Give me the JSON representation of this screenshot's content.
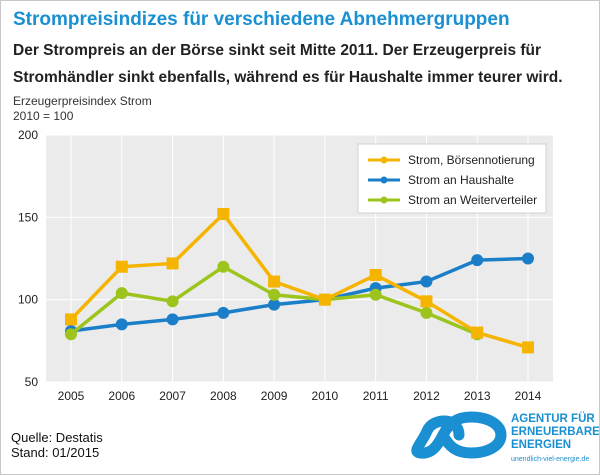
{
  "title": "Strompreisindizes für verschiedene Abnehmergruppen",
  "subtitle_lines": [
    "Der Strompreis an der Börse sinkt seit Mitte 2011. Der Erzeugerpreis für",
    "Stromhändler sinkt ebenfalls, während es für Haushalte immer teurer wird."
  ],
  "axis_title_lines": [
    "Erzeugerpreisindex Strom",
    "2010 = 100"
  ],
  "source_lines": [
    "Quelle: Destatis",
    "Stand: 01/2015"
  ],
  "logo": {
    "lines": [
      "AGENTUR FÜR",
      "ERNEUERBARE",
      "ENERGIEN"
    ],
    "url": "unendlich-viel-energie.de"
  },
  "colors": {
    "accent": "#1a8fd1",
    "boerse": "#f5b400",
    "haushalte": "#1a7fc8",
    "weiterverteiler": "#9cc41c",
    "plot_bg": "#ebebeb"
  },
  "chart_data": {
    "type": "line",
    "x": [
      "2005",
      "2006",
      "2007",
      "2008",
      "2009",
      "2010",
      "2011",
      "2012",
      "2013",
      "2014"
    ],
    "ylim": [
      50,
      200
    ],
    "yticks": [
      "50",
      "100",
      "150",
      "200"
    ],
    "grid": true,
    "legend_position": "top-right",
    "series": [
      {
        "name": "Strom, Börsennotierung",
        "color": "#f5b400",
        "marker": "square",
        "values": [
          88,
          120,
          122,
          152,
          111,
          100,
          115,
          99,
          80,
          71
        ]
      },
      {
        "name": "Strom an Haushalte",
        "color": "#1a7fc8",
        "marker": "circle",
        "values": [
          81,
          85,
          88,
          92,
          97,
          100,
          107,
          111,
          124,
          125
        ]
      },
      {
        "name": "Strom an Weiterverteiler",
        "color": "#9cc41c",
        "marker": "circle",
        "values": [
          79,
          104,
          99,
          120,
          103,
          100,
          103,
          92,
          79,
          null
        ]
      }
    ]
  }
}
